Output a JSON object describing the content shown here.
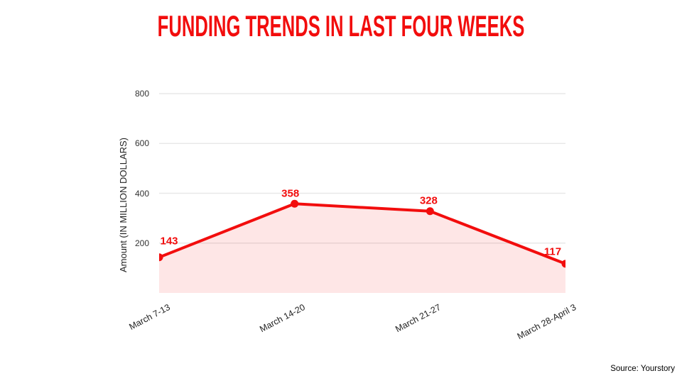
{
  "page": {
    "background": "#ffffff"
  },
  "colors": {
    "accent_red": "#f20d0d",
    "area_fill": "rgba(242,13,13,0.10)",
    "gridline": "#e8e8e8",
    "axis_text": "#222222"
  },
  "source_note": "Source: Yourstory",
  "chart_data": {
    "type": "area",
    "title": "FUNDING TRENDS IN LAST FOUR WEEKS",
    "categories": [
      "March 7-13",
      "March 14-20",
      "March 21-27",
      "March 28-April 3"
    ],
    "values": [
      143,
      358,
      328,
      117
    ],
    "point_labels": [
      "143",
      "358",
      "328",
      "117"
    ],
    "xlabel": "",
    "ylabel": "Amount (IN MILLION DOLLARS)",
    "ylim": [
      0,
      800
    ],
    "yticks": [
      200,
      400,
      600,
      800
    ],
    "grid": true,
    "legend_position": "none"
  }
}
